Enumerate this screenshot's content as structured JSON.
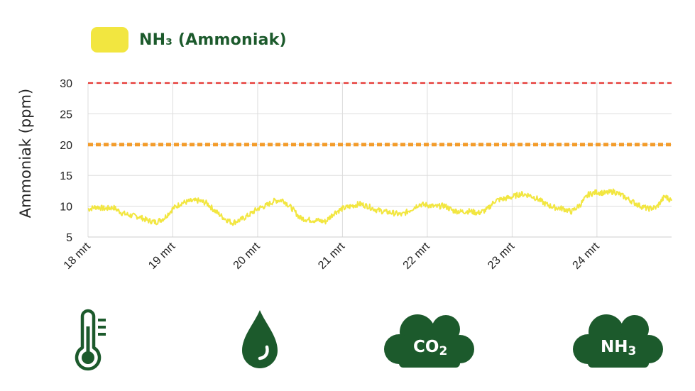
{
  "legend": {
    "label": "NH₃ (Ammoniak)",
    "color": "#f2e640"
  },
  "colors": {
    "brand": "#1c5a2c",
    "series": "#f2e640",
    "limit_high": "#e53935",
    "limit_mid": "#f39c2b",
    "grid": "#dddddd"
  },
  "chart_data": {
    "type": "line",
    "ylabel": "Ammoniak (ppm)",
    "ylim": [
      5,
      30
    ],
    "yticks": [
      5,
      10,
      15,
      20,
      25,
      30
    ],
    "xlim": [
      0,
      6.88
    ],
    "x_tick_positions": [
      0,
      1,
      2,
      3,
      4,
      5,
      6
    ],
    "x_tick_labels": [
      "18 mrt",
      "19 mrt",
      "20 mrt",
      "21 mrt",
      "22 mrt",
      "23 mrt",
      "24 mrt"
    ],
    "grid": true,
    "reference_lines": [
      {
        "y": 30,
        "style": "dashed",
        "color": "#e53935"
      },
      {
        "y": 20,
        "style": "dotted",
        "color": "#f39c2b"
      }
    ],
    "series": [
      {
        "color": "#f2e640",
        "x": [
          0,
          0.1,
          0.2,
          0.3,
          0.4,
          0.5,
          0.6,
          0.7,
          0.8,
          0.9,
          1.0,
          1.1,
          1.2,
          1.3,
          1.4,
          1.5,
          1.6,
          1.7,
          1.8,
          1.9,
          2.0,
          2.1,
          2.2,
          2.3,
          2.4,
          2.5,
          2.6,
          2.7,
          2.8,
          2.9,
          3.0,
          3.1,
          3.2,
          3.3,
          3.4,
          3.5,
          3.6,
          3.7,
          3.8,
          3.9,
          4.0,
          4.1,
          4.2,
          4.3,
          4.4,
          4.5,
          4.6,
          4.7,
          4.8,
          4.9,
          5.0,
          5.1,
          5.2,
          5.3,
          5.4,
          5.5,
          5.6,
          5.7,
          5.8,
          5.9,
          6.0,
          6.1,
          6.2,
          6.3,
          6.4,
          6.5,
          6.6,
          6.7,
          6.8,
          6.88
        ],
        "y": [
          9.5,
          9.9,
          9.6,
          9.8,
          8.9,
          8.5,
          8.3,
          7.7,
          7.4,
          8.1,
          9.6,
          10.5,
          10.8,
          10.9,
          10.5,
          9.2,
          8.1,
          7.3,
          7.8,
          8.6,
          9.6,
          10.1,
          10.9,
          11.0,
          9.7,
          8.1,
          7.8,
          7.7,
          7.5,
          8.9,
          9.6,
          10.0,
          10.4,
          10.0,
          9.4,
          9.1,
          8.9,
          8.6,
          9.4,
          10.3,
          10.2,
          9.9,
          10.1,
          9.3,
          9.1,
          9.2,
          8.9,
          9.4,
          10.9,
          11.2,
          11.5,
          12.0,
          11.8,
          11.2,
          10.3,
          9.8,
          9.6,
          9.1,
          10.2,
          11.9,
          12.3,
          12.1,
          12.4,
          11.7,
          10.9,
          10.1,
          9.6,
          9.8,
          11.6,
          10.9
        ]
      }
    ]
  },
  "icons": {
    "thermometer": "thermometer-icon",
    "droplet": "humidity-droplet-icon",
    "co2": {
      "name": "co2-cloud-icon",
      "main": "CO",
      "sub": "2"
    },
    "nh3": {
      "name": "nh3-cloud-icon",
      "main": "NH",
      "sub": "3"
    }
  }
}
